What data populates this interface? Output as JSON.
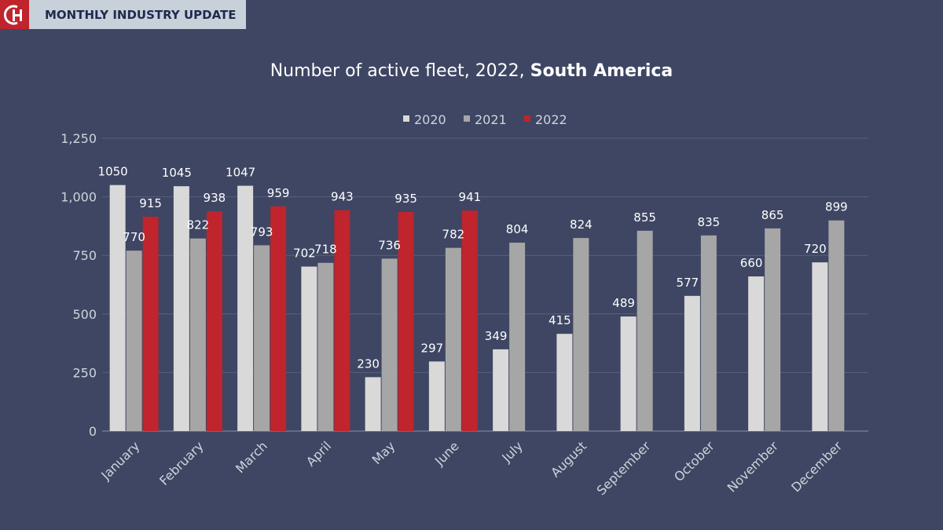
{
  "header": {
    "logo_text": "CH",
    "title": "MONTHLY INDUSTRY UPDATE"
  },
  "chart_data": {
    "type": "bar",
    "title": "Number of active fleet, 2022, ",
    "title_bold": "South America",
    "categories": [
      "January",
      "February",
      "March",
      "April",
      "May",
      "June",
      "July",
      "August",
      "September",
      "October",
      "November",
      "December"
    ],
    "series": [
      {
        "name": "2020",
        "color": "#d9d9d9",
        "values": [
          1050,
          1045,
          1047,
          702,
          230,
          297,
          349,
          415,
          489,
          577,
          660,
          720
        ]
      },
      {
        "name": "2021",
        "color": "#a6a6a6",
        "values": [
          770,
          822,
          793,
          718,
          736,
          782,
          804,
          824,
          855,
          835,
          865,
          899
        ]
      },
      {
        "name": "2022",
        "color": "#c0242c",
        "values": [
          915,
          938,
          959,
          943,
          935,
          941,
          null,
          null,
          null,
          null,
          null,
          null
        ]
      }
    ],
    "yticks": [
      "0",
      "250",
      "500",
      "750",
      "1,000",
      "1,250"
    ],
    "ylim": [
      0,
      1250
    ],
    "grid": true,
    "legend": "top-center",
    "background": "#3e4663"
  }
}
